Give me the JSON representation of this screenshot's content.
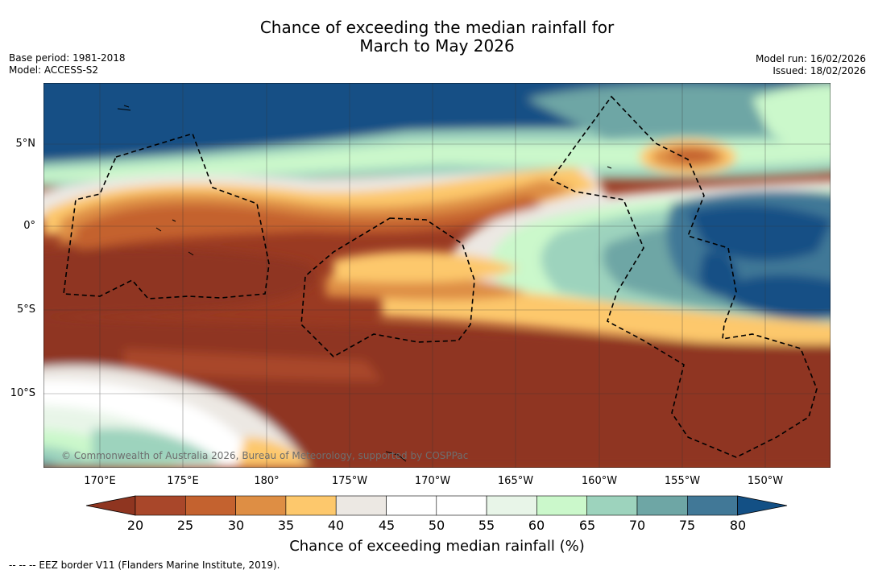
{
  "title": {
    "line1": "Chance of exceeding the median rainfall for",
    "line2": "March to May 2026"
  },
  "meta": {
    "base_period": "Base period: 1981-2018",
    "model": "Model: ACCESS-S2",
    "model_run": "Model run: 16/02/2026",
    "issued": "Issued: 18/02/2026"
  },
  "map": {
    "lat_labels": [
      "5°N",
      "0°",
      "5°S",
      "10°S"
    ],
    "lon_labels": [
      "170°E",
      "175°E",
      "180°",
      "175°W",
      "170°W",
      "165°W",
      "160°W",
      "155°W",
      "150°W"
    ],
    "copyright": "© Commonwealth of Australia 2026, Bureau of Meteorology, supported by COSPPac"
  },
  "colorbar": {
    "title": "Chance of exceeding median rainfall (%)",
    "ticks": [
      "20",
      "25",
      "30",
      "35",
      "40",
      "45",
      "50",
      "55",
      "60",
      "65",
      "70",
      "75",
      "80"
    ],
    "colors": {
      "lt20": "#8f3520",
      "c20_25": "#a9472a",
      "c25_30": "#c4622f",
      "c30_35": "#de8e44",
      "c35_40": "#fdc86c",
      "c40_45": "#ece8e3",
      "c45_50": "#ffffff",
      "c50_55": "#ffffff",
      "c55_60": "#e8f5e8",
      "c60_65": "#cbf8cb",
      "c65_70": "#9dd3bd",
      "c70_75": "#6ea6a5",
      "c75_80": "#417897",
      "gt80": "#135085"
    }
  },
  "footer": "--  --  -- EEZ border V11 (Flanders Marine Institute, 2019)."
}
